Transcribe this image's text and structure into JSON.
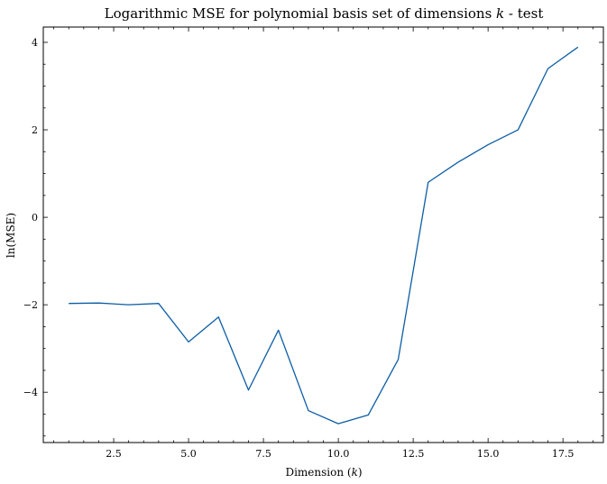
{
  "colors": {
    "series": "#0C5DA5",
    "axes": "#000000",
    "background": "#ffffff"
  },
  "chart_data": {
    "type": "line",
    "title": "Logarithmic MSE for polynomial basis set of dimensions",
    "title_var": "k",
    "title_suffix": " - test",
    "xlabel": "Dimension (",
    "xlabel_var": "k",
    "xlabel_suffix": ")",
    "ylabel": "ln(MSE)",
    "xlim": [
      0.15,
      18.85
    ],
    "ylim": [
      -5.15,
      4.35
    ],
    "xticks": [
      2.5,
      5.0,
      7.5,
      10.0,
      12.5,
      15.0,
      17.5
    ],
    "xtick_labels": [
      "2.5",
      "5.0",
      "7.5",
      "10.0",
      "12.5",
      "15.0",
      "17.5"
    ],
    "yticks": [
      -4,
      -2,
      0,
      2,
      4
    ],
    "ytick_labels": [
      "−4",
      "−2",
      "0",
      "2",
      "4"
    ],
    "grid": false,
    "series": [
      {
        "name": "test",
        "x": [
          1,
          2,
          3,
          4,
          5,
          6,
          7,
          8,
          9,
          10,
          11,
          12,
          13,
          14,
          15,
          16,
          17,
          18
        ],
        "values": [
          -1.97,
          -1.96,
          -2.0,
          -1.97,
          -2.85,
          -2.28,
          -3.95,
          -2.58,
          -4.42,
          -4.72,
          -4.52,
          -3.25,
          0.8,
          1.26,
          1.66,
          2.0,
          3.4,
          3.89
        ]
      }
    ]
  }
}
